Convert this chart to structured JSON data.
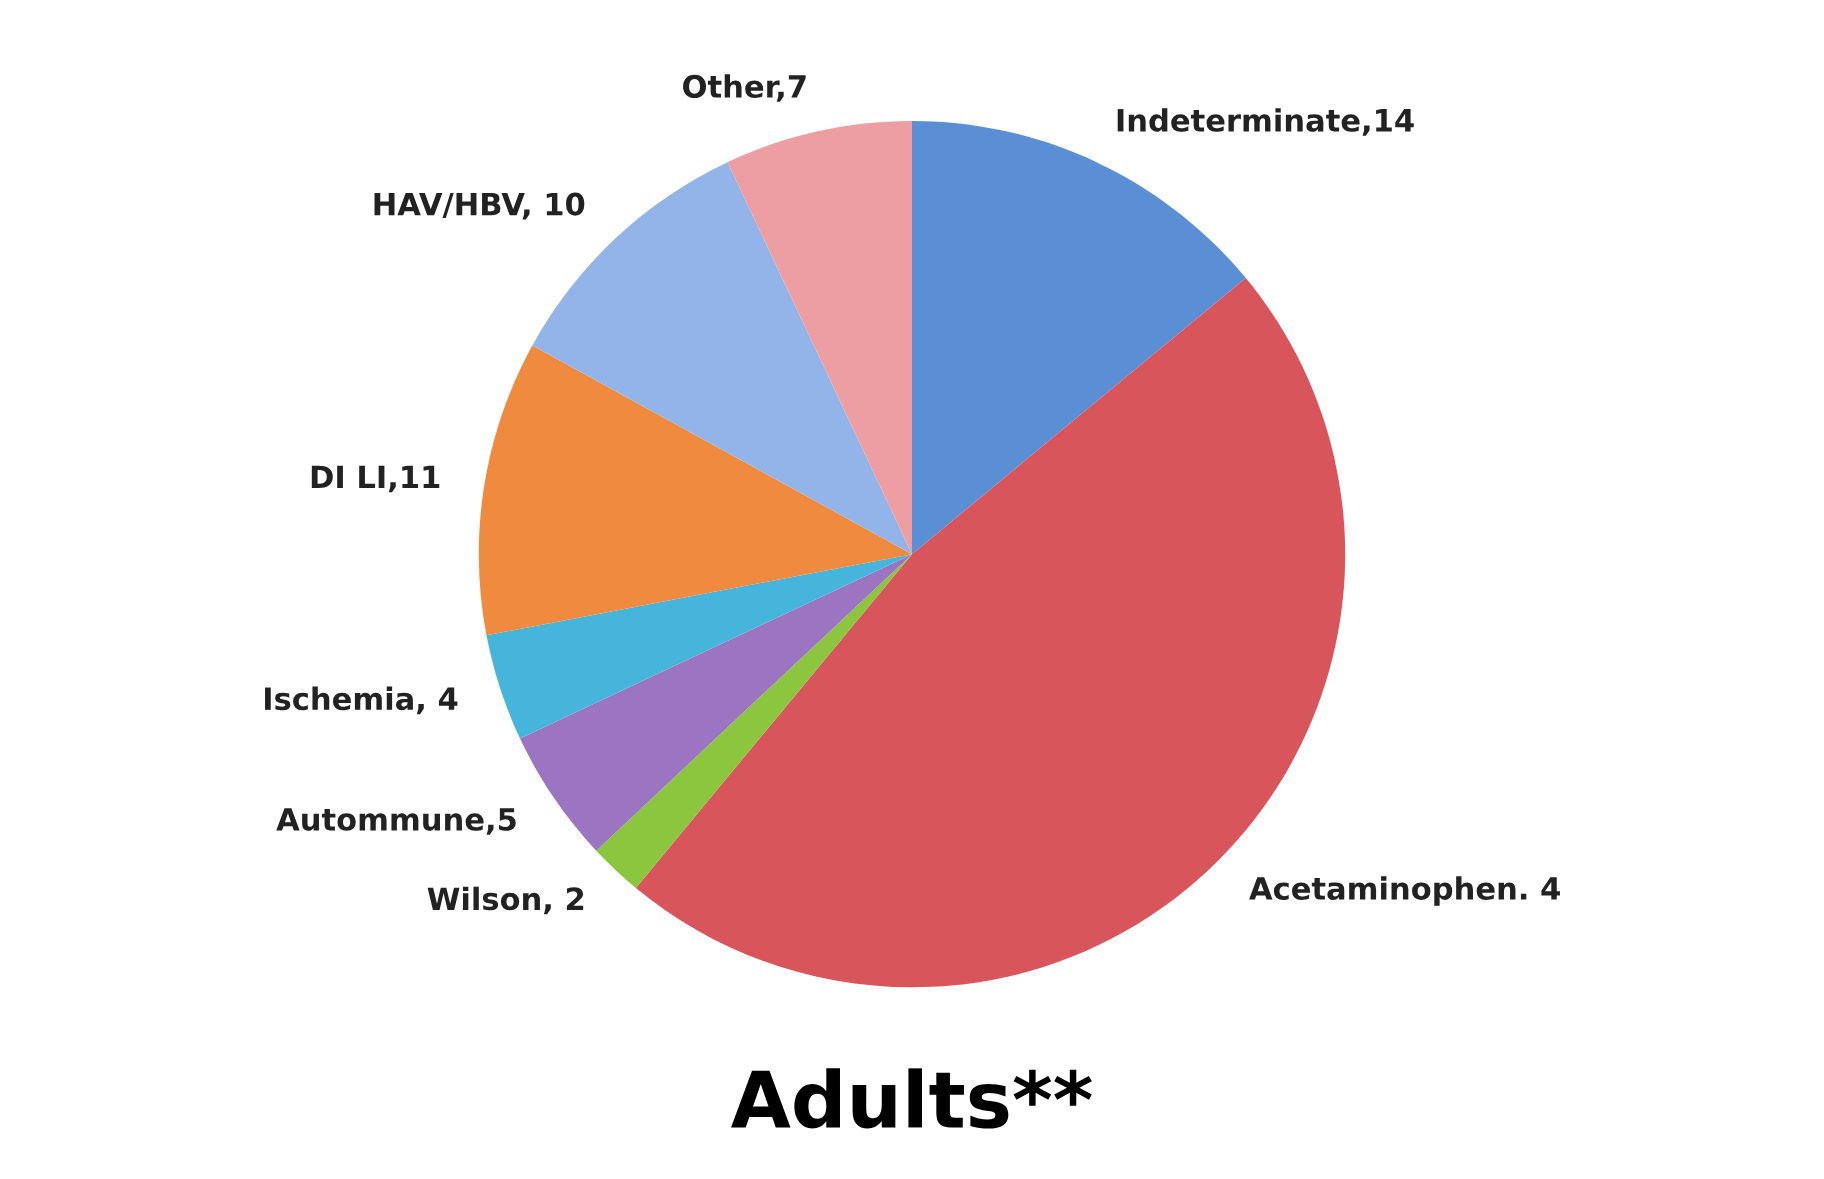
{
  "chart_data": {
    "type": "pie",
    "title": "Adults**",
    "categories": [
      "Indeterminate,14",
      "Acetaminophen. 4",
      "Wilson, 2",
      "Autommune,5",
      "Ischemia, 4",
      "DI LI,11",
      "HAV/HBV, 10",
      "Other,7"
    ],
    "values": [
      14,
      47,
      2,
      5,
      4,
      11,
      10,
      7
    ],
    "colors": [
      "#5a8fd6",
      "#d9555c",
      "#8cc63f",
      "#9b74c2",
      "#45b5dc",
      "#f08a3e",
      "#93b4e8",
      "#ec9ea3"
    ],
    "legend": false
  }
}
